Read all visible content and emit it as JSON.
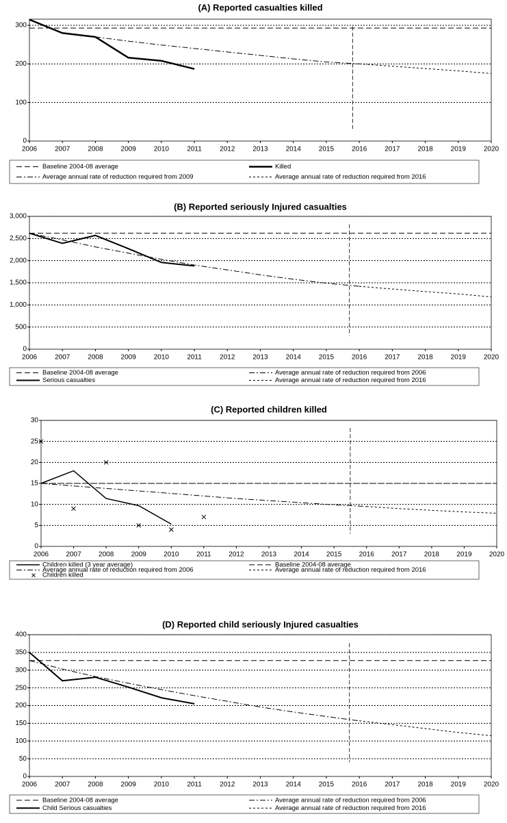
{
  "chart_data": [
    {
      "type": "line",
      "title": "(A) Reported casualties killed",
      "x": [
        2006,
        2007,
        2008,
        2009,
        2010,
        2011,
        2012,
        2013,
        2014,
        2015,
        2016,
        2017,
        2018,
        2019,
        2020
      ],
      "xlim": [
        2006,
        2020
      ],
      "xticks": [
        2006,
        2007,
        2008,
        2009,
        2010,
        2011,
        2012,
        2013,
        2014,
        2015,
        2016,
        2017,
        2018,
        2019,
        2020
      ],
      "ylim": [
        0,
        316
      ],
      "yticks": [
        0,
        100,
        200,
        300
      ],
      "grid": true,
      "vline": 2015.8,
      "series": [
        {
          "name": "Baseline 2004-08 average",
          "color": "#000",
          "style": "dashed",
          "width": 1,
          "values": [
            293,
            293,
            293,
            293,
            293,
            293,
            293,
            293,
            293,
            293,
            293,
            293,
            293,
            293,
            293
          ]
        },
        {
          "name": "Killed",
          "color": "#000",
          "style": "solid",
          "width": 2.5,
          "values": [
            315,
            280,
            270,
            216,
            208,
            187,
            null,
            null,
            null,
            null,
            null,
            null,
            null,
            null,
            null
          ]
        },
        {
          "name": "Average annual rate of reduction required from 2009",
          "color": "#000",
          "style": "dashdot",
          "width": 1,
          "values": [
            null,
            null,
            270,
            259,
            249,
            240,
            231,
            222,
            213,
            205,
            200,
            null,
            null,
            null,
            null
          ]
        },
        {
          "name": "Average annual rate of reduction required from 2016",
          "color": "#000",
          "style": "dotted",
          "width": 1,
          "values": [
            null,
            null,
            null,
            null,
            null,
            null,
            null,
            null,
            null,
            null,
            200,
            194,
            188,
            182,
            175
          ]
        }
      ]
    },
    {
      "type": "line",
      "title": "(B) Reported seriously Injured casualties",
      "x": [
        2006,
        2007,
        2008,
        2009,
        2010,
        2011,
        2012,
        2013,
        2014,
        2015,
        2016,
        2017,
        2018,
        2019,
        2020
      ],
      "xlim": [
        2006,
        2020
      ],
      "xticks": [
        2006,
        2007,
        2008,
        2009,
        2010,
        2011,
        2012,
        2013,
        2014,
        2015,
        2016,
        2017,
        2018,
        2019,
        2020
      ],
      "ylim": [
        0,
        3000
      ],
      "yticks": [
        0,
        500,
        {
          "value": 1000,
          "label": "1,000"
        },
        {
          "value": 1500,
          "label": "1,500"
        },
        {
          "value": 2000,
          "label": "2,000"
        },
        {
          "value": 2500,
          "label": "2,500"
        },
        {
          "value": 3000,
          "label": "3,000"
        }
      ],
      "grid": true,
      "vline": 2015.7,
      "series": [
        {
          "name": "Baseline 2004-08 average",
          "color": "#000",
          "style": "dashed",
          "width": 1,
          "values": [
            2620,
            2620,
            2620,
            2620,
            2620,
            2620,
            2620,
            2620,
            2620,
            2620,
            2620,
            2620,
            2620,
            2620,
            2620
          ]
        },
        {
          "name": "Average annual rate of reduction required from 2006",
          "color": "#000",
          "style": "dashdot",
          "width": 1,
          "values": [
            2620,
            2470,
            2310,
            2170,
            2030,
            1900,
            1790,
            1680,
            1580,
            1490,
            1420,
            null,
            null,
            null,
            null
          ]
        },
        {
          "name": "Serious casualties",
          "color": "#000",
          "style": "solid",
          "width": 2,
          "values": [
            2620,
            2390,
            2570,
            2270,
            1960,
            1880,
            null,
            null,
            null,
            null,
            null,
            null,
            null,
            null,
            null
          ]
        },
        {
          "name": "Average annual rate of reduction required from 2016",
          "color": "#000",
          "style": "dotted",
          "width": 1,
          "values": [
            null,
            null,
            null,
            null,
            null,
            null,
            null,
            null,
            null,
            null,
            1420,
            1360,
            1300,
            1250,
            1180
          ]
        }
      ]
    },
    {
      "type": "line",
      "title": "(C) Reported children killed",
      "x": [
        2006,
        2007,
        2008,
        2009,
        2010,
        2011,
        2012,
        2013,
        2014,
        2015,
        2016,
        2017,
        2018,
        2019,
        2020
      ],
      "xlim": [
        2006,
        2020
      ],
      "xticks": [
        2006,
        2007,
        2008,
        2009,
        2010,
        2011,
        2012,
        2013,
        2014,
        2015,
        2016,
        2017,
        2018,
        2019,
        2020
      ],
      "ylim": [
        0,
        30
      ],
      "yticks": [
        0,
        5,
        10,
        15,
        20,
        25,
        30
      ],
      "grid": true,
      "vline": 2015.5,
      "series": [
        {
          "name": "Children killed (3 year average)",
          "color": "#000",
          "style": "solid",
          "width": 1.5,
          "values": [
            15,
            18,
            11.4,
            9.7,
            5.3,
            null,
            null,
            null,
            null,
            null,
            null,
            null,
            null,
            null,
            null
          ]
        },
        {
          "name": "Baseline 2004-08 average",
          "color": "#000",
          "style": "dashed",
          "width": 1,
          "values": [
            15,
            15,
            15,
            15,
            15,
            15,
            15,
            15,
            15,
            15,
            15,
            15,
            15,
            15,
            15
          ]
        },
        {
          "name": "Average annual rate of reduction required from 2006",
          "color": "#000",
          "style": "dashdot",
          "width": 1,
          "values": [
            15,
            14.4,
            13.8,
            13.2,
            12.6,
            12,
            11.4,
            10.9,
            10.4,
            9.9,
            9.5,
            null,
            null,
            null,
            null
          ]
        },
        {
          "name": "Average annual rate of reduction required from 2016",
          "color": "#000",
          "style": "dotted",
          "width": 1,
          "values": [
            null,
            null,
            null,
            null,
            null,
            null,
            null,
            null,
            null,
            null,
            9.5,
            9,
            8.6,
            8.2,
            7.9
          ]
        },
        {
          "name": "Children killed",
          "color": "#000",
          "style": "marker",
          "width": 1,
          "values": [
            25,
            9,
            20,
            5,
            4,
            7,
            null,
            null,
            null,
            null,
            null,
            null,
            null,
            null,
            null
          ]
        }
      ]
    },
    {
      "type": "line",
      "title": "(D) Reported child seriously Injured casualties",
      "x": [
        2006,
        2007,
        2008,
        2009,
        2010,
        2011,
        2012,
        2013,
        2014,
        2015,
        2016,
        2017,
        2018,
        2019,
        2020
      ],
      "xlim": [
        2006,
        2020
      ],
      "xticks": [
        2006,
        2007,
        2008,
        2009,
        2010,
        2011,
        2012,
        2013,
        2014,
        2015,
        2016,
        2017,
        2018,
        2019,
        2020
      ],
      "ylim": [
        0,
        400
      ],
      "yticks": [
        0,
        50,
        100,
        150,
        200,
        250,
        300,
        350,
        400
      ],
      "grid": true,
      "vline": 2015.7,
      "series": [
        {
          "name": "Baseline 2004-08 average",
          "color": "#000",
          "style": "dashed",
          "width": 1,
          "values": [
            327,
            327,
            327,
            327,
            327,
            327,
            327,
            327,
            327,
            327,
            327,
            327,
            327,
            327,
            327
          ]
        },
        {
          "name": "Average annual rate of reduction required from 2006",
          "color": "#000",
          "style": "dashdot",
          "width": 1,
          "values": [
            327,
            303,
            282,
            263,
            245,
            228,
            212,
            196,
            182,
            169,
            157,
            null,
            null,
            null,
            null
          ]
        },
        {
          "name": "Child Serious casualties",
          "color": "#000",
          "style": "solid",
          "width": 2,
          "values": [
            350,
            270,
            280,
            252,
            222,
            205,
            null,
            null,
            null,
            null,
            null,
            null,
            null,
            null,
            null
          ]
        },
        {
          "name": "Average annual rate of reduction required from 2016",
          "color": "#000",
          "style": "dotted",
          "width": 1,
          "values": [
            null,
            null,
            null,
            null,
            null,
            null,
            null,
            null,
            null,
            null,
            157,
            146,
            135,
            124,
            115
          ]
        }
      ]
    }
  ]
}
